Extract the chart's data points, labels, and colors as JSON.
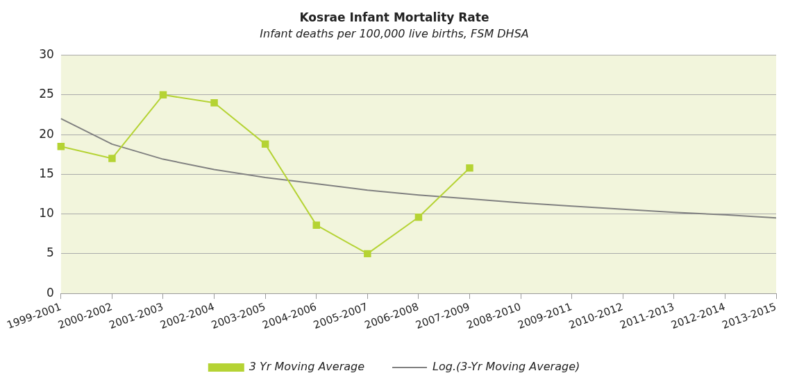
{
  "chart_data": {
    "type": "line",
    "title": "Kosrae Infant Mortality Rate",
    "subtitle": "Infant deaths per 100,000 live births, FSM DHSA",
    "categories": [
      "1999-2001",
      "2000-2002",
      "2001-2003",
      "2002-2004",
      "2003-2005",
      "2004-2006",
      "2005-2007",
      "2006-2008",
      "2007-2009",
      "2008-2010",
      "2009-2011",
      "2010-2012",
      "2011-2013",
      "2012-2014",
      "2013-2015"
    ],
    "series": [
      {
        "name": "3 Yr Moving Average",
        "color": "#b5d334",
        "marker": "square",
        "values": [
          18.5,
          17,
          25,
          24,
          18.8,
          8.6,
          5,
          9.6,
          15.8,
          null,
          null,
          null,
          null,
          null,
          null
        ]
      },
      {
        "name": "Log.(3-Yr Moving Average)",
        "color": "#808080",
        "marker": "none",
        "values": [
          22,
          18.8,
          16.9,
          15.6,
          14.6,
          13.8,
          13.0,
          12.4,
          11.9,
          11.4,
          11.0,
          10.6,
          10.2,
          9.9,
          9.5
        ]
      }
    ],
    "ylim": [
      0,
      30
    ],
    "yticks": [
      0,
      5,
      10,
      15,
      20,
      25,
      30
    ],
    "grid": "y",
    "legend": "bottom",
    "line_style": "solid"
  }
}
